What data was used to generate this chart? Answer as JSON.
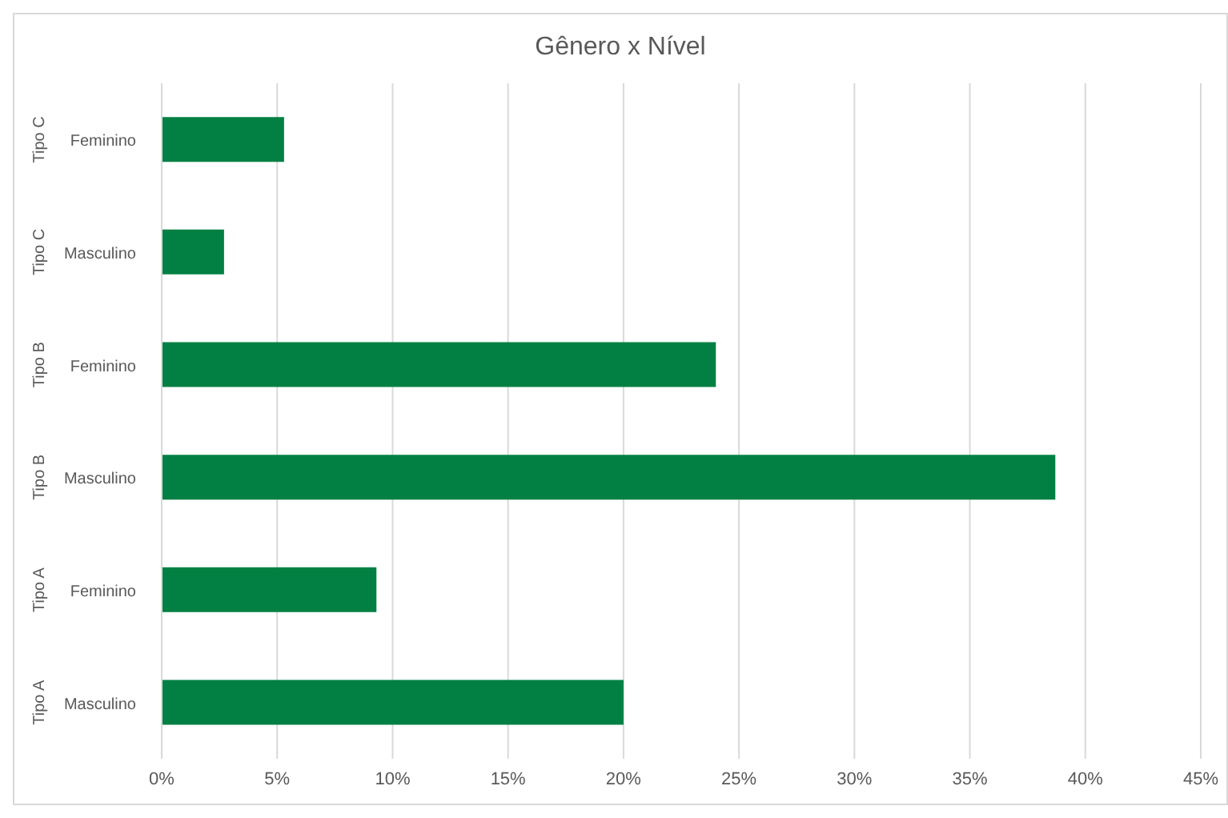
{
  "chart_data": {
    "type": "bar",
    "orientation": "horizontal",
    "title": "Gênero x Nível",
    "categories": [
      "Feminino",
      "Masculino",
      "Feminino",
      "Masculino",
      "Feminino",
      "Masculino"
    ],
    "annotations": [
      "Tipo C",
      "Tipo C",
      "Tipo B",
      "Tipo B",
      "Tipo A",
      "Tipo A"
    ],
    "values": [
      5.3,
      2.7,
      24.0,
      38.7,
      9.3,
      20.0
    ],
    "color": "#028043",
    "xlim": [
      0,
      45
    ],
    "xticks": [
      {
        "value": 0,
        "label": "0%"
      },
      {
        "value": 5,
        "label": "5%"
      },
      {
        "value": 10,
        "label": "10%"
      },
      {
        "value": 15,
        "label": "15%"
      },
      {
        "value": 20,
        "label": "20%"
      },
      {
        "value": 25,
        "label": "25%"
      },
      {
        "value": 30,
        "label": "30%"
      },
      {
        "value": 35,
        "label": "35%"
      },
      {
        "value": 40,
        "label": "40%"
      },
      {
        "value": 45,
        "label": "45%"
      }
    ],
    "grid": "x",
    "legend": false
  }
}
